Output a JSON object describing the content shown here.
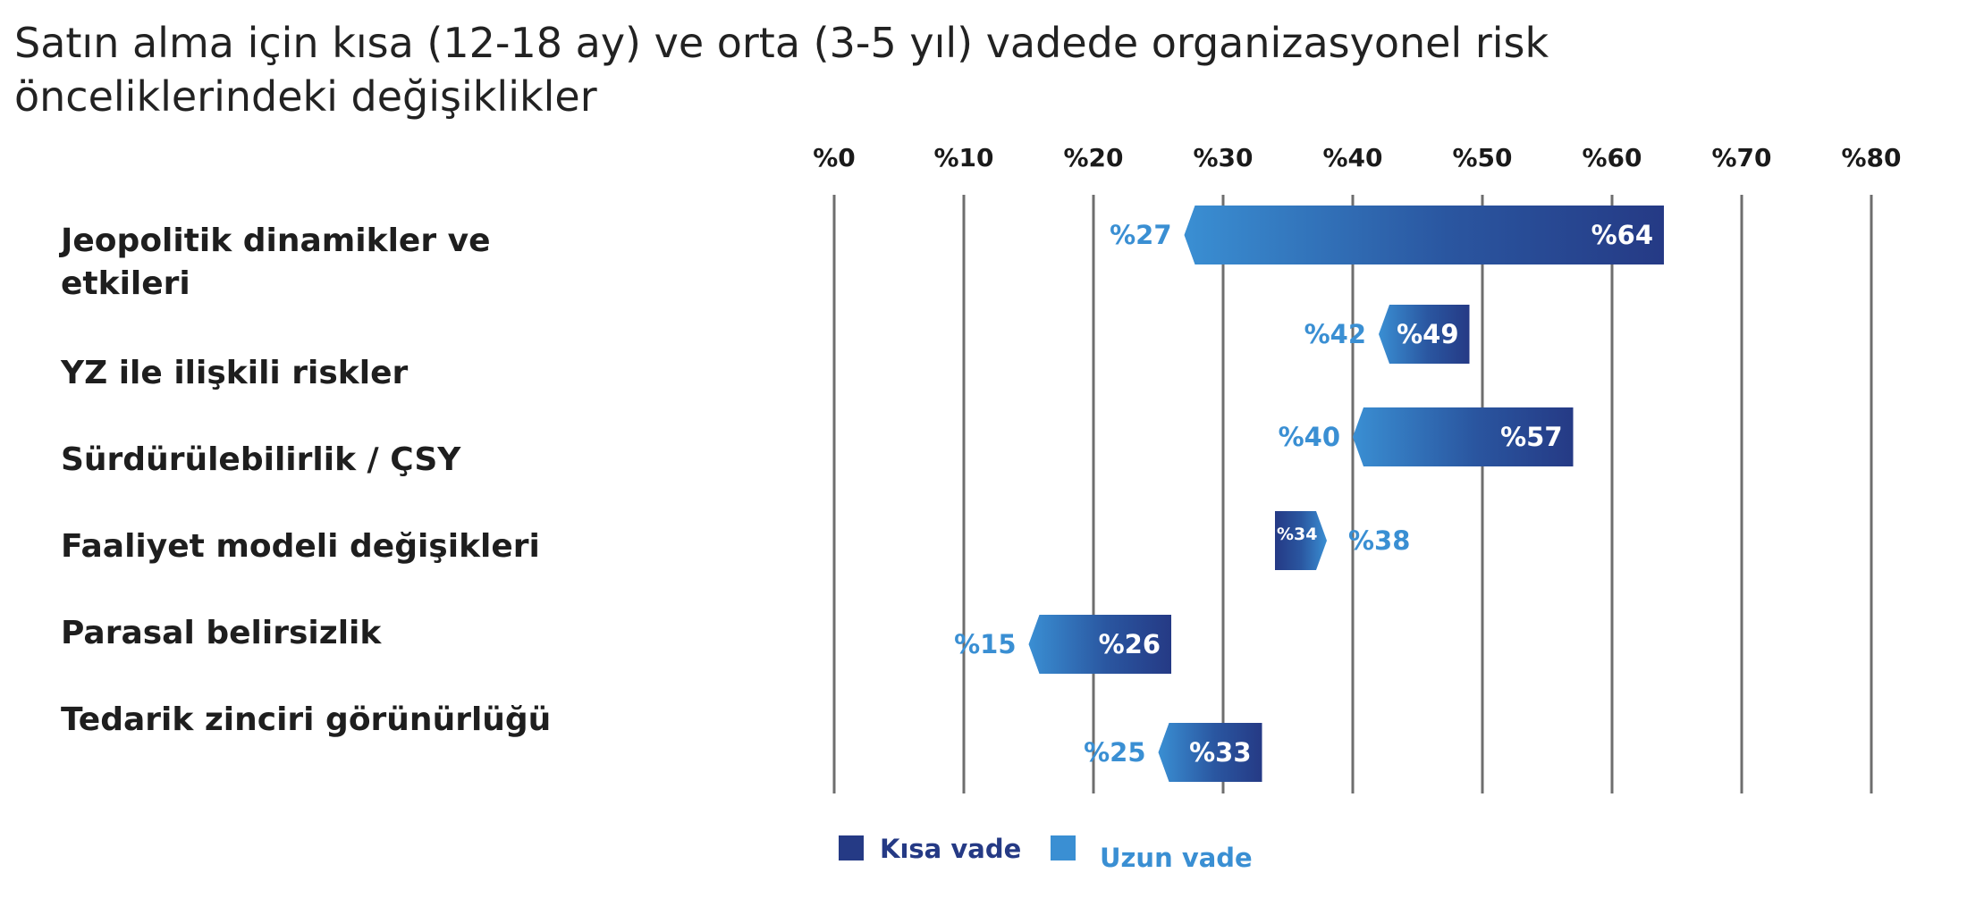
{
  "chart_data": {
    "type": "bar",
    "subtype": "range",
    "title": "Satın alma için kısa (12-18 ay) ve orta (3-5 yıl) vadede organizasyonel risk önceliklerindeki değişiklikler",
    "xlim": [
      0,
      80
    ],
    "x_ticks": [
      0,
      10,
      20,
      30,
      40,
      50,
      60,
      70,
      80
    ],
    "x_tick_labels": [
      "%0",
      "%10",
      "%20",
      "%30",
      "%40",
      "%50",
      "%60",
      "%70",
      "%80"
    ],
    "grid": true,
    "legend_position": "bottom",
    "categories": [
      [
        "Jeopolitik dinamikler ve",
        "etkileri"
      ],
      [
        "YZ ile ilişkili riskler"
      ],
      [
        "Sürdürülebilirlik / ÇSY"
      ],
      [
        "Faaliyet modeli değişikleri"
      ],
      [
        "Parasal belirsizlik"
      ],
      [
        "Tedarik zinciri görünürlüğü"
      ]
    ],
    "series": [
      {
        "name": "Kısa vade",
        "color": "#253a85",
        "values": [
          64,
          49,
          57,
          34,
          26,
          33
        ],
        "value_labels": [
          "%64",
          "%49",
          "%57",
          "%34",
          "%26",
          "%33"
        ]
      },
      {
        "name": "Uzun vade",
        "color": "#3a8fd3",
        "values": [
          27,
          42,
          40,
          38,
          15,
          25
        ],
        "value_labels": [
          "%27",
          "%42",
          "%40",
          "%38",
          "%15",
          "%25"
        ]
      }
    ]
  }
}
